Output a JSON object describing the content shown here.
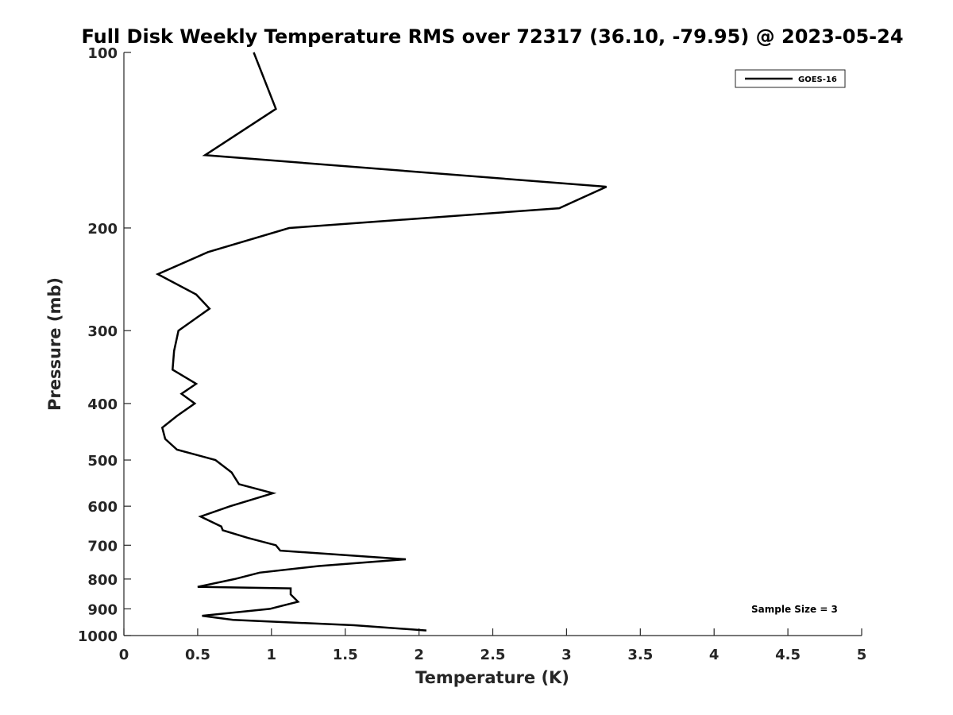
{
  "chart_data": {
    "type": "line",
    "title": "Full Disk Weekly Temperature RMS over 72317 (36.10, -79.95) @ 2023-05-24",
    "xlabel": "Temperature (K)",
    "ylabel": "Pressure (mb)",
    "xlim": [
      0,
      5
    ],
    "ylim": [
      100,
      1000
    ],
    "y_scale": "log",
    "y_reversed": true,
    "x_ticks": [
      0,
      0.5,
      1,
      1.5,
      2,
      2.5,
      3,
      3.5,
      4,
      4.5,
      5
    ],
    "x_tick_labels": [
      "0",
      "0.5",
      "1",
      "1.5",
      "2",
      "2.5",
      "3",
      "3.5",
      "4",
      "4.5",
      "5"
    ],
    "y_ticks": [
      100,
      200,
      300,
      400,
      500,
      600,
      700,
      800,
      900,
      1000
    ],
    "y_tick_labels": [
      "100",
      "200",
      "300",
      "400",
      "500",
      "600",
      "700",
      "800",
      "900",
      "1000"
    ],
    "grid": false,
    "legend_position": "top-right",
    "annotation": "Sample Size = 3",
    "series": [
      {
        "name": "GOES-16",
        "color": "#000000",
        "points": [
          [
            0.88,
            100
          ],
          [
            1.03,
            125
          ],
          [
            0.55,
            150
          ],
          [
            3.27,
            170
          ],
          [
            2.95,
            185
          ],
          [
            1.12,
            200
          ],
          [
            0.57,
            220
          ],
          [
            0.23,
            240
          ],
          [
            0.49,
            260
          ],
          [
            0.58,
            275
          ],
          [
            0.37,
            300
          ],
          [
            0.34,
            325
          ],
          [
            0.33,
            350
          ],
          [
            0.49,
            370
          ],
          [
            0.39,
            385
          ],
          [
            0.48,
            400
          ],
          [
            0.36,
            420
          ],
          [
            0.26,
            440
          ],
          [
            0.28,
            460
          ],
          [
            0.36,
            480
          ],
          [
            0.62,
            500
          ],
          [
            0.73,
            525
          ],
          [
            0.78,
            550
          ],
          [
            1.01,
            570
          ],
          [
            0.72,
            600
          ],
          [
            0.52,
            625
          ],
          [
            0.66,
            650
          ],
          [
            0.67,
            660
          ],
          [
            0.84,
            680
          ],
          [
            1.03,
            700
          ],
          [
            1.06,
            715
          ],
          [
            1.91,
            740
          ],
          [
            1.32,
            760
          ],
          [
            0.92,
            780
          ],
          [
            0.75,
            800
          ],
          [
            0.5,
            825
          ],
          [
            1.13,
            830
          ],
          [
            1.13,
            850
          ],
          [
            1.18,
            875
          ],
          [
            0.99,
            900
          ],
          [
            0.53,
            925
          ],
          [
            0.74,
            940
          ],
          [
            1.56,
            960
          ],
          [
            2.05,
            980
          ]
        ]
      }
    ]
  }
}
